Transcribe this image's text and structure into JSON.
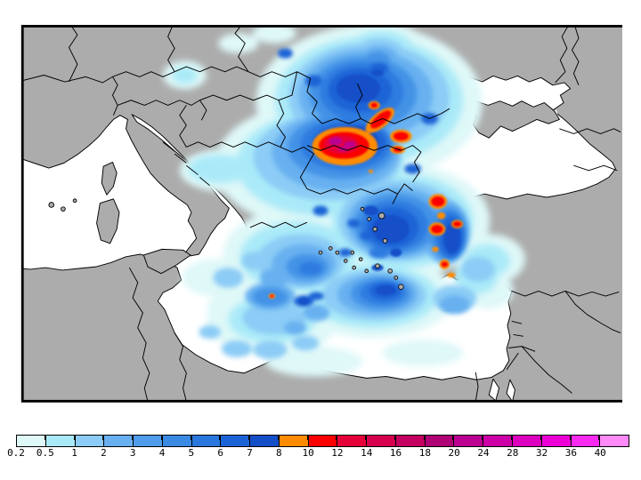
{
  "figure": {
    "title": "",
    "kind": "precipitation-contour-map"
  },
  "colors": {
    "land": "#acacac",
    "sea": "#ffffff",
    "coastline": "#000000",
    "frame": "#000000",
    "background": "#ffffff"
  },
  "legend": {
    "tick_labels": [
      "0.2",
      "0.5",
      "1",
      "2",
      "3",
      "4",
      "5",
      "6",
      "7",
      "8",
      "10",
      "12",
      "14",
      "16",
      "18",
      "20",
      "24",
      "28",
      "32",
      "36",
      "40"
    ],
    "cell_colors": [
      "#dff8f8",
      "#aaeaf8",
      "#8cccf6",
      "#68b0f0",
      "#4e9cea",
      "#3a8ae4",
      "#2a78de",
      "#1c64d6",
      "#144fc8",
      "#ff8c00",
      "#fa0000",
      "#e60039",
      "#d6004e",
      "#c40060",
      "#b00376",
      "#bc0092",
      "#cc00a6",
      "#dc00be",
      "#ec00d6",
      "#fa2af0",
      "#ff8af8"
    ],
    "position": "bottom"
  },
  "chart_data": {
    "type": "heatmap",
    "title": "",
    "legend_position": "bottom",
    "scale_ticks": [
      0.2,
      0.5,
      1,
      2,
      3,
      4,
      5,
      6,
      7,
      8,
      10,
      12,
      14,
      16,
      18,
      20,
      24,
      28,
      32,
      36,
      40
    ],
    "scale_colors": [
      "#dff8f8",
      "#aaeaf8",
      "#8cccf6",
      "#68b0f0",
      "#4e9cea",
      "#3a8ae4",
      "#2a78de",
      "#1c64d6",
      "#144fc8",
      "#ff8c00",
      "#fa0000",
      "#e60039",
      "#d6004e",
      "#c40060",
      "#b00376",
      "#bc0092",
      "#cc00a6",
      "#dc00be",
      "#ec00d6",
      "#fa2af0",
      "#ff8af8"
    ],
    "open_ended_last_cell": true
  }
}
